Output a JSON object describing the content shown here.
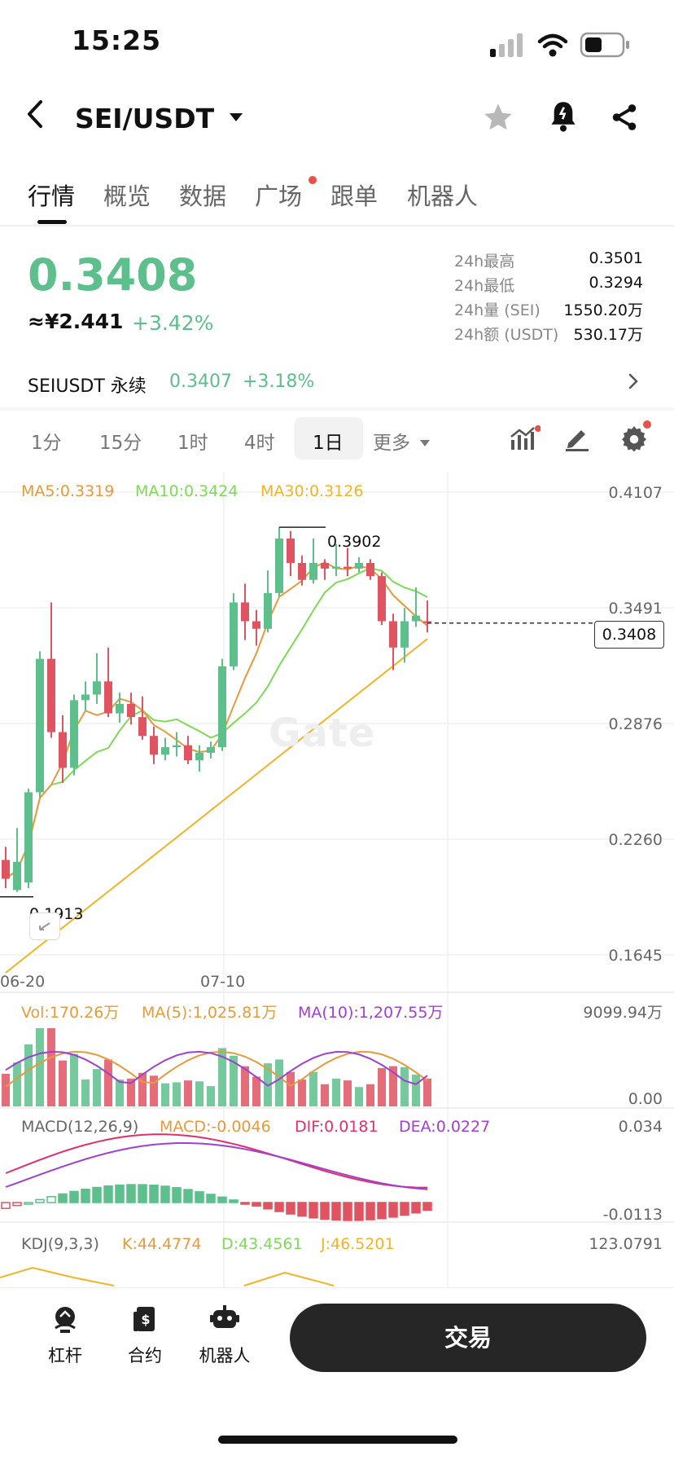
{
  "status_bar": {
    "time": "15:25"
  },
  "header": {
    "pair": "SEI/USDT"
  },
  "tabs": [
    {
      "label": "行情",
      "active": true
    },
    {
      "label": "概览"
    },
    {
      "label": "数据"
    },
    {
      "label": "广场",
      "badge_dot": true
    },
    {
      "label": "跟单"
    },
    {
      "label": "机器人"
    }
  ],
  "price": {
    "last": "0.3408",
    "cny": "≈¥2.441",
    "change": "+3.42%"
  },
  "stats": [
    {
      "label": "24h最高",
      "value": "0.3501"
    },
    {
      "label": "24h最低",
      "value": "0.3294"
    },
    {
      "label": "24h量 (SEI)",
      "value": "1550.20万"
    },
    {
      "label": "24h额 (USDT)",
      "value": "530.17万"
    }
  ],
  "perpetual": {
    "name": "SEIUSDT 永续",
    "price": "0.3407",
    "change": "+3.18%"
  },
  "intervals": [
    "1分",
    "15分",
    "1时",
    "4时",
    "1日",
    "更多"
  ],
  "active_interval": "1日",
  "main_chart": {
    "ma5": "MA5:0.3319",
    "ma10": "MA10:0.3424",
    "ma30": "MA30:0.3126",
    "y_ticks": [
      "0.4107",
      "0.3491",
      "0.2876",
      "0.2260",
      "0.1645"
    ],
    "x_ticks": [
      "06-20",
      "07-10"
    ],
    "current_price_tag": "0.3408",
    "high_marker": "0.3902",
    "low_marker": "0.1913",
    "watermark": "Gate"
  },
  "volume": {
    "vol": "Vol:170.26万",
    "ma5": "MA(5):1,025.81万",
    "ma10": "MA(10):1,207.55万",
    "y_max": "9099.94万",
    "y_min": "0.00"
  },
  "macd": {
    "title": "MACD(12,26,9)",
    "macd": "MACD:-0.0046",
    "dif": "DIF:0.0181",
    "dea": "DEA:0.0227",
    "y_max": "0.034",
    "y_min": "-0.0113"
  },
  "kdj": {
    "title": "KDJ(9,3,3)",
    "k": "K:44.4774",
    "d": "D:43.4561",
    "j": "J:46.5201",
    "y_max": "123.0791"
  },
  "bottom_nav": [
    {
      "label": "杠杆",
      "icon": "leverage-icon"
    },
    {
      "label": "合约",
      "icon": "contract-icon"
    },
    {
      "label": "机器人",
      "icon": "robot-icon"
    }
  ],
  "trade_button": "交易",
  "colors": {
    "up": "#5cbf8c",
    "down": "#e05462",
    "ma5": "#e69a3c",
    "ma10": "#7ed957",
    "ma30": "#f0b429",
    "purple": "#a040d0"
  },
  "candles": [
    {
      "o": 0.215,
      "c": 0.205,
      "h": 0.222,
      "l": 0.2
    },
    {
      "o": 0.199,
      "c": 0.214,
      "h": 0.232,
      "l": 0.198
    },
    {
      "o": 0.203,
      "c": 0.251,
      "h": 0.253,
      "l": 0.2
    },
    {
      "o": 0.251,
      "c": 0.322,
      "h": 0.326,
      "l": 0.248
    },
    {
      "o": 0.322,
      "c": 0.283,
      "h": 0.352,
      "l": 0.28
    },
    {
      "o": 0.283,
      "c": 0.264,
      "h": 0.292,
      "l": 0.256
    },
    {
      "o": 0.264,
      "c": 0.3,
      "h": 0.303,
      "l": 0.26
    },
    {
      "o": 0.3,
      "c": 0.303,
      "h": 0.31,
      "l": 0.294
    },
    {
      "o": 0.303,
      "c": 0.31,
      "h": 0.325,
      "l": 0.298
    },
    {
      "o": 0.31,
      "c": 0.293,
      "h": 0.328,
      "l": 0.291
    },
    {
      "o": 0.293,
      "c": 0.298,
      "h": 0.304,
      "l": 0.288
    },
    {
      "o": 0.298,
      "c": 0.291,
      "h": 0.304,
      "l": 0.287
    },
    {
      "o": 0.291,
      "c": 0.281,
      "h": 0.302,
      "l": 0.279
    },
    {
      "o": 0.281,
      "c": 0.271,
      "h": 0.286,
      "l": 0.266
    },
    {
      "o": 0.271,
      "c": 0.275,
      "h": 0.28,
      "l": 0.268
    },
    {
      "o": 0.275,
      "c": 0.276,
      "h": 0.283,
      "l": 0.27
    },
    {
      "o": 0.276,
      "c": 0.268,
      "h": 0.281,
      "l": 0.266
    },
    {
      "o": 0.268,
      "c": 0.272,
      "h": 0.276,
      "l": 0.262
    },
    {
      "o": 0.272,
      "c": 0.275,
      "h": 0.278,
      "l": 0.269
    },
    {
      "o": 0.275,
      "c": 0.318,
      "h": 0.322,
      "l": 0.273
    },
    {
      "o": 0.318,
      "c": 0.352,
      "h": 0.357,
      "l": 0.316
    },
    {
      "o": 0.352,
      "c": 0.342,
      "h": 0.362,
      "l": 0.332
    },
    {
      "o": 0.342,
      "c": 0.338,
      "h": 0.348,
      "l": 0.329
    },
    {
      "o": 0.338,
      "c": 0.357,
      "h": 0.369,
      "l": 0.336
    },
    {
      "o": 0.357,
      "c": 0.386,
      "h": 0.392,
      "l": 0.355
    },
    {
      "o": 0.386,
      "c": 0.373,
      "h": 0.39,
      "l": 0.366
    },
    {
      "o": 0.373,
      "c": 0.364,
      "h": 0.377,
      "l": 0.361
    },
    {
      "o": 0.364,
      "c": 0.373,
      "h": 0.386,
      "l": 0.362
    },
    {
      "o": 0.373,
      "c": 0.37,
      "h": 0.375,
      "l": 0.364
    },
    {
      "o": 0.37,
      "c": 0.371,
      "h": 0.383,
      "l": 0.366
    },
    {
      "o": 0.371,
      "c": 0.37,
      "h": 0.381,
      "l": 0.366
    },
    {
      "o": 0.37,
      "c": 0.373,
      "h": 0.376,
      "l": 0.368
    },
    {
      "o": 0.373,
      "c": 0.366,
      "h": 0.375,
      "l": 0.364
    },
    {
      "o": 0.366,
      "c": 0.342,
      "h": 0.368,
      "l": 0.34
    },
    {
      "o": 0.342,
      "c": 0.328,
      "h": 0.346,
      "l": 0.316
    },
    {
      "o": 0.328,
      "c": 0.342,
      "h": 0.349,
      "l": 0.32
    },
    {
      "o": 0.342,
      "c": 0.345,
      "h": 0.36,
      "l": 0.339
    },
    {
      "o": 0.342,
      "c": 0.341,
      "h": 0.353,
      "l": 0.336
    }
  ]
}
